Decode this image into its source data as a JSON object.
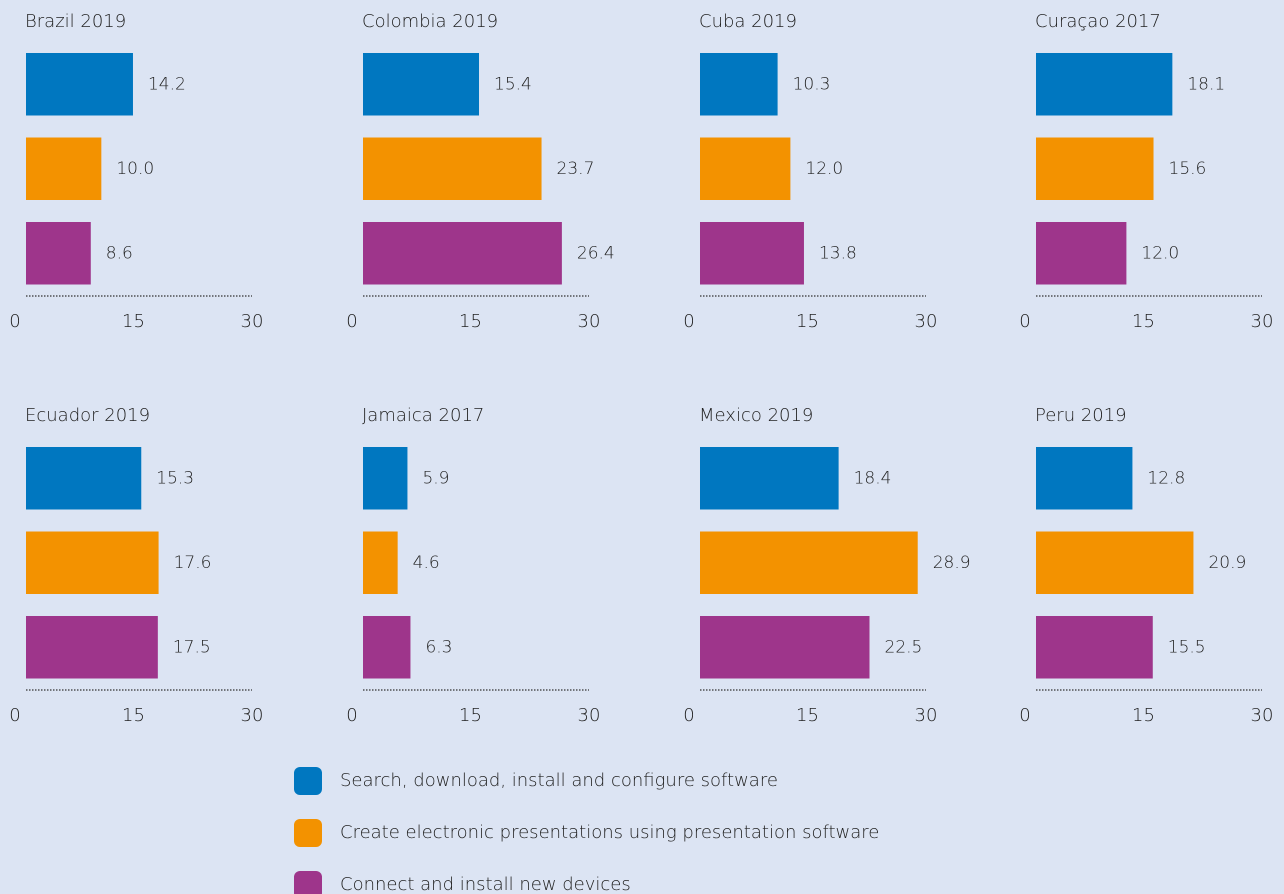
{
  "chart_data": [
    {
      "type": "bar",
      "orientation": "horizontal",
      "title": "Brazil 2019",
      "values": [
        14.2,
        10.0,
        8.6
      ],
      "value_labels": [
        "14.2",
        "10.0",
        "8.6"
      ],
      "xlim": [
        0,
        30
      ],
      "xticks": [
        0,
        15,
        30
      ]
    },
    {
      "type": "bar",
      "orientation": "horizontal",
      "title": "Colombia 2019",
      "values": [
        15.4,
        23.7,
        26.4
      ],
      "value_labels": [
        "15.4",
        "23.7",
        "26.4"
      ],
      "xlim": [
        0,
        30
      ],
      "xticks": [
        0,
        15,
        30
      ]
    },
    {
      "type": "bar",
      "orientation": "horizontal",
      "title": "Cuba 2019",
      "values": [
        10.3,
        12.0,
        13.8
      ],
      "value_labels": [
        "10.3",
        "12.0",
        "13.8"
      ],
      "xlim": [
        0,
        30
      ],
      "xticks": [
        0,
        15,
        30
      ]
    },
    {
      "type": "bar",
      "orientation": "horizontal",
      "title": "Curaçao 2017",
      "values": [
        18.1,
        15.6,
        12.0
      ],
      "value_labels": [
        "18.1",
        "15.6",
        "12.0"
      ],
      "xlim": [
        0,
        30
      ],
      "xticks": [
        0,
        15,
        30
      ]
    },
    {
      "type": "bar",
      "orientation": "horizontal",
      "title": "Ecuador 2019",
      "values": [
        15.3,
        17.6,
        17.5
      ],
      "value_labels": [
        "15.3",
        "17.6",
        "17.5"
      ],
      "xlim": [
        0,
        30
      ],
      "xticks": [
        0,
        15,
        30
      ]
    },
    {
      "type": "bar",
      "orientation": "horizontal",
      "title": "Jamaica 2017",
      "values": [
        5.9,
        4.6,
        6.3
      ],
      "value_labels": [
        "5.9",
        "4.6",
        "6.3"
      ],
      "xlim": [
        0,
        30
      ],
      "xticks": [
        0,
        15,
        30
      ]
    },
    {
      "type": "bar",
      "orientation": "horizontal",
      "title": "Mexico 2019",
      "values": [
        18.4,
        28.9,
        22.5
      ],
      "value_labels": [
        "18.4",
        "28.9",
        "22.5"
      ],
      "xlim": [
        0,
        30
      ],
      "xticks": [
        0,
        15,
        30
      ]
    },
    {
      "type": "bar",
      "orientation": "horizontal",
      "title": "Peru 2019",
      "values": [
        12.8,
        20.9,
        15.5
      ],
      "value_labels": [
        "12.8",
        "20.9",
        "15.5"
      ],
      "xlim": [
        0,
        30
      ],
      "xticks": [
        0,
        15,
        30
      ]
    }
  ],
  "legend": {
    "items": [
      {
        "name": "Search, download, install and configure software",
        "color": "#0077c0"
      },
      {
        "name": "Create electronic presentations using presentation software",
        "color": "#f39200"
      },
      {
        "name": "Connect and install new devices",
        "color": "#9e358b"
      }
    ]
  }
}
